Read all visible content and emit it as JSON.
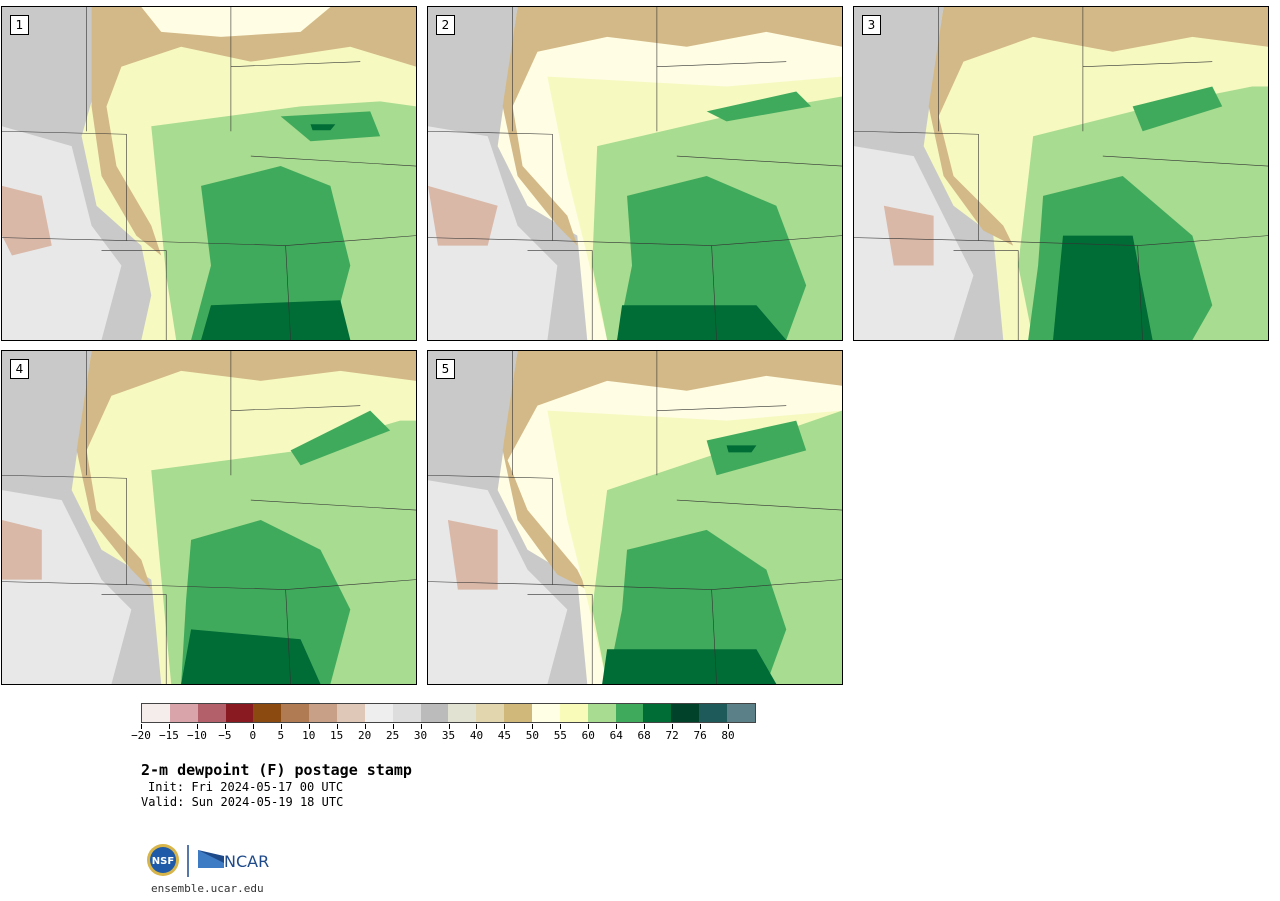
{
  "panels": [
    {
      "label": "1"
    },
    {
      "label": "2"
    },
    {
      "label": "3"
    },
    {
      "label": "4"
    },
    {
      "label": "5"
    }
  ],
  "colorbar": {
    "colors": [
      "#f5ecec",
      "#d9a5aa",
      "#b3606a",
      "#8a1a22",
      "#8a4a10",
      "#b07a52",
      "#c8a088",
      "#e0c8b8",
      "#eeeeee",
      "#dddddd",
      "#bbbbbb",
      "#e2e2d2",
      "#e2d6ae",
      "#d0b87a",
      "#ffffe6",
      "#f8fcb8",
      "#a8dc90",
      "#40aa5c",
      "#006c36",
      "#00422a",
      "#1e5a5a",
      "#5c8088"
    ],
    "tick_labels": [
      "−20",
      "−15",
      "−10",
      "−5",
      "0",
      "5",
      "10",
      "15",
      "20",
      "25",
      "30",
      "35",
      "40",
      "45",
      "50",
      "55",
      "60",
      "64",
      "68",
      "72",
      "76",
      "80"
    ]
  },
  "title": "2-m dewpoint (F) postage stamp",
  "init": "Init: Fri 2024-05-17 00 UTC",
  "valid": "Valid: Sun 2024-05-19 18 UTC",
  "logos": {
    "left_logo": "NSF",
    "right_logo": "NCAR"
  },
  "website": "ensemble.ucar.edu"
}
